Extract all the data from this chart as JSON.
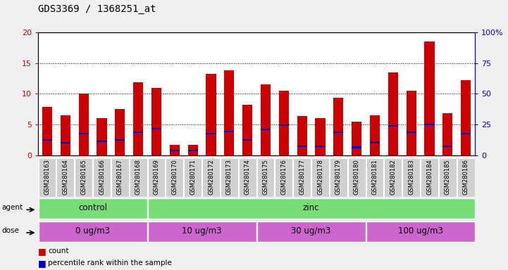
{
  "title": "GDS3369 / 1368251_at",
  "samples": [
    "GSM280163",
    "GSM280164",
    "GSM280165",
    "GSM280166",
    "GSM280167",
    "GSM280168",
    "GSM280169",
    "GSM280170",
    "GSM280171",
    "GSM280172",
    "GSM280173",
    "GSM280174",
    "GSM280175",
    "GSM280176",
    "GSM280177",
    "GSM280178",
    "GSM280179",
    "GSM280180",
    "GSM280181",
    "GSM280182",
    "GSM280183",
    "GSM280184",
    "GSM280185",
    "GSM280186"
  ],
  "count_values": [
    7.9,
    6.5,
    10.1,
    6.1,
    7.5,
    11.9,
    11.0,
    1.7,
    1.7,
    13.2,
    13.8,
    8.2,
    11.5,
    10.5,
    6.4,
    6.1,
    9.4,
    5.5,
    6.5,
    13.5,
    10.5,
    18.5,
    6.8,
    12.2
  ],
  "percentile_values": [
    2.5,
    2.0,
    3.5,
    2.3,
    2.5,
    3.8,
    4.3,
    0.8,
    0.8,
    3.5,
    3.9,
    2.5,
    4.2,
    4.9,
    1.5,
    1.5,
    3.8,
    1.3,
    2.1,
    4.8,
    3.8,
    5.0,
    1.5,
    3.5
  ],
  "ylim_left": [
    0,
    20
  ],
  "ylim_right": [
    0,
    100
  ],
  "yticks_left": [
    0,
    5,
    10,
    15,
    20
  ],
  "yticks_right": [
    0,
    25,
    50,
    75,
    100
  ],
  "bar_color": "#cc0000",
  "percentile_color": "#0000cc",
  "fig_bg_color": "#f0f0f0",
  "plot_bg_color": "#ffffff",
  "left_tick_color": "#cc0000",
  "right_tick_color": "#0000cc",
  "agent_groups": [
    {
      "label": "control",
      "start": 0,
      "end": 6,
      "color": "#77dd77"
    },
    {
      "label": "zinc",
      "start": 6,
      "end": 24,
      "color": "#77dd77"
    }
  ],
  "dose_groups": [
    {
      "label": "0 ug/m3",
      "start": 0,
      "end": 6,
      "color": "#cc66cc"
    },
    {
      "label": "10 ug/m3",
      "start": 6,
      "end": 12,
      "color": "#cc66cc"
    },
    {
      "label": "30 ug/m3",
      "start": 12,
      "end": 18,
      "color": "#cc66cc"
    },
    {
      "label": "100 ug/m3",
      "start": 18,
      "end": 24,
      "color": "#cc66cc"
    }
  ],
  "xlabel_bg": "#d0d0d0",
  "bar_width": 0.55
}
